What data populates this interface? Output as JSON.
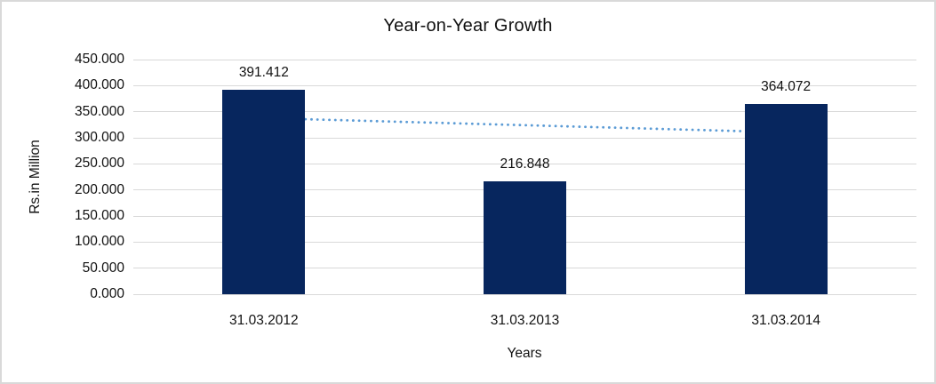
{
  "chart_data": {
    "type": "bar",
    "title": "Year-on-Year Growth",
    "xlabel": "Years",
    "ylabel": "Rs.in Million",
    "categories": [
      "31.03.2012",
      "31.03.2013",
      "31.03.2014"
    ],
    "values": [
      391.412,
      216.848,
      364.072
    ],
    "data_labels": [
      "391.412",
      "216.848",
      "364.072"
    ],
    "ylim": [
      0,
      450
    ],
    "ytick_step": 50,
    "ytick_labels": [
      "0.000",
      "50.000",
      "100.000",
      "150.000",
      "200.000",
      "250.000",
      "300.000",
      "350.000",
      "400.000",
      "450.000"
    ],
    "grid": true,
    "legend": "none",
    "colors": {
      "bar": "#07265e",
      "gridline": "#d9d9d9",
      "trendline": "#5b9bd5",
      "text": "#111111",
      "frame_border": "#d9d9d9"
    },
    "trendline": {
      "style": "dotted",
      "fit": "linear",
      "endpoint_values": [
        337.8,
        310.4
      ]
    }
  }
}
